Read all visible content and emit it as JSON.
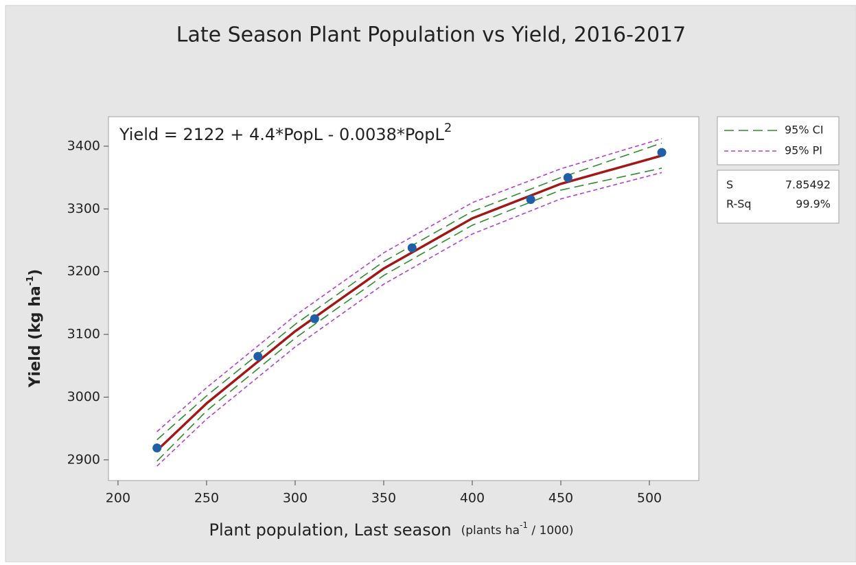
{
  "chart_data": {
    "type": "scatter",
    "title": "Late Season Plant Population vs Yield, 2016-2017",
    "annotation": [
      "Yield = 2122 + 4.4*PopL  - 0.0038*PopL",
      "2"
    ],
    "xlabel": [
      "Plant population, Last season",
      "(plants ha",
      "-1",
      " / 1000)"
    ],
    "ylabel": [
      "Yield  (kg ha",
      "-1",
      ")"
    ],
    "x": [
      222,
      279,
      311,
      366,
      433,
      454,
      507
    ],
    "values": [
      2919,
      3065,
      3125,
      3238,
      3315,
      3350,
      3390
    ],
    "color": "#1f5fa8",
    "fit": {
      "color": "#a01818",
      "x": [
        222,
        250,
        300,
        350,
        400,
        450,
        507
      ],
      "values": [
        2915,
        2990,
        3105,
        3205,
        3285,
        3340,
        3385
      ]
    },
    "bands": [
      {
        "name": "95% CI",
        "color": "#2e8b2e",
        "dash": "14 7",
        "lower": [
          2898,
          2978,
          3094,
          3194,
          3274,
          3330,
          3365
        ],
        "upper": [
          2932,
          3002,
          3116,
          3216,
          3296,
          3350,
          3405
        ]
      },
      {
        "name": "95% PI",
        "color": "#b040d0",
        "dash": "6 4",
        "lower": [
          2890,
          2965,
          3080,
          3180,
          3260,
          3316,
          3358
        ],
        "upper": [
          2945,
          3015,
          3130,
          3230,
          3310,
          3364,
          3412
        ]
      }
    ],
    "xlim": [
      194.6,
      527.9
    ],
    "ylim": [
      2867,
      3447
    ],
    "xticks": [
      200,
      250,
      300,
      350,
      400,
      450,
      500
    ],
    "yticks": [
      2900,
      3000,
      3100,
      3200,
      3300,
      3400
    ],
    "stats": [
      {
        "label": "S",
        "value": "7.85492"
      },
      {
        "label": "R-Sq",
        "value": "99.9%"
      }
    ]
  }
}
